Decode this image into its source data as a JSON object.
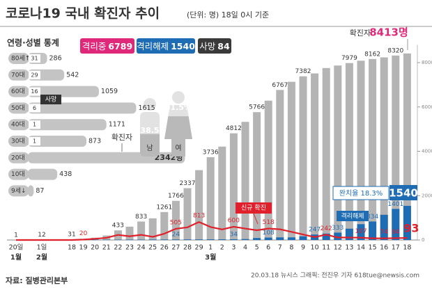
{
  "header": {
    "title": "코로나19 국내 확진자 추이",
    "subtitle": "(단위: 명) 18일 0시 기준"
  },
  "status": [
    {
      "label": "격리중",
      "value": 6789,
      "color": "#e0287a"
    },
    {
      "label": "격리해제",
      "value": 1540,
      "color": "#1e6cb4"
    },
    {
      "label": "사망",
      "value": 84,
      "color": "#3a3a3a"
    }
  ],
  "chart_data": [
    {
      "type": "bar",
      "categories": [
        "20일",
        "1일",
        "18",
        "19",
        "20",
        "21",
        "22",
        "23",
        "24",
        "25",
        "26",
        "27",
        "28",
        "29",
        "1",
        "2",
        "3",
        "4",
        "5",
        "6",
        "7",
        "8",
        "9",
        "10",
        "11",
        "12",
        "13",
        "14",
        "15",
        "16",
        "17",
        "18"
      ],
      "months": [
        "1월",
        "2월",
        "3월"
      ],
      "series": [
        {
          "name": "확진자",
          "color": "#b4b4b4",
          "values": [
            1,
            12,
            31,
            51,
            104,
            204,
            433,
            602,
            833,
            977,
            1261,
            1766,
            2337,
            3150,
            3736,
            4212,
            4812,
            5328,
            5766,
            6284,
            6767,
            7134,
            7382,
            7513,
            7755,
            7869,
            7979,
            8086,
            8162,
            8236,
            8320,
            8413
          ],
          "value_labels": [
            "1",
            "12",
            "31",
            null,
            null,
            null,
            "433",
            null,
            "833",
            null,
            "1261",
            "1766",
            "2337",
            null,
            "3736",
            null,
            "4812",
            null,
            "5766",
            null,
            "6767",
            null,
            "7382",
            null,
            null,
            null,
            "7979",
            null,
            "8162",
            null,
            "8320",
            "8413명"
          ]
        },
        {
          "name": "격리해제",
          "color": "#1e6cb4",
          "values": [
            0,
            0,
            10,
            16,
            16,
            16,
            16,
            18,
            18,
            22,
            22,
            24,
            26,
            27,
            30,
            30,
            34,
            41,
            88,
            108,
            118,
            118,
            166,
            247,
            288,
            333,
            510,
            714,
            834,
            1137,
            1401,
            1540
          ],
          "value_labels": [
            null,
            null,
            null,
            null,
            null,
            null,
            null,
            null,
            null,
            null,
            null,
            "24",
            null,
            null,
            null,
            null,
            "34",
            null,
            null,
            "108",
            null,
            null,
            null,
            "247",
            null,
            "333",
            null,
            null,
            "834",
            null,
            "1401",
            "1540"
          ]
        },
        {
          "name": "신규 확진",
          "type": "line",
          "color": "#e0202a",
          "values": [
            1,
            1,
            1,
            20,
            53,
            100,
            229,
            169,
            231,
            144,
            284,
            505,
            571,
            813,
            586,
            476,
            600,
            516,
            438,
            518,
            483,
            367,
            248,
            131,
            242,
            114,
            110,
            107,
            76,
            74,
            84,
            93
          ],
          "value_labels": [
            null,
            null,
            null,
            "20",
            null,
            null,
            null,
            null,
            null,
            null,
            null,
            "505",
            null,
            "813",
            null,
            null,
            "600",
            null,
            null,
            "518",
            null,
            null,
            null,
            null,
            "242",
            null,
            null,
            "107",
            null,
            "74",
            "84",
            "93"
          ]
        }
      ],
      "annotations": [
        "완치율 18.3%"
      ],
      "ylim": [
        0,
        8800
      ],
      "yticks": [
        0,
        2000,
        4000,
        6000,
        8000
      ],
      "y_axis_side": "right",
      "grid": false
    },
    {
      "type": "hbar",
      "title": "연령·성별 통계",
      "categories": [
        "80세↑",
        "70대",
        "60대",
        "50대",
        "40대",
        "30대",
        "20대",
        "10대",
        "9세↓"
      ],
      "series": [
        {
          "name": "확진자",
          "color": "#c4c4c4",
          "values": [
            286,
            542,
            1059,
            1615,
            1171,
            873,
            2342,
            438,
            87
          ],
          "value_labels": [
            "286",
            "542",
            "1059",
            "1615",
            "1171",
            "873",
            "2342명",
            "438",
            "87"
          ]
        },
        {
          "name": "사망",
          "color": "#333333",
          "values": [
            31,
            29,
            16,
            6,
            1,
            1,
            null,
            null,
            null
          ]
        }
      ],
      "xlim": [
        0,
        2400
      ]
    },
    {
      "type": "pictogram",
      "categories": [
        "남",
        "여"
      ],
      "values": [
        38.5,
        61.5
      ],
      "value_labels": [
        "38.5",
        "61.5%"
      ],
      "color": "#b9b9b9"
    }
  ],
  "footer": {
    "source": "자료: 질병관리본부",
    "credit": "20.03.18 뉴시스 그래픽: 전진우 기자 618tue@newsis.com"
  }
}
